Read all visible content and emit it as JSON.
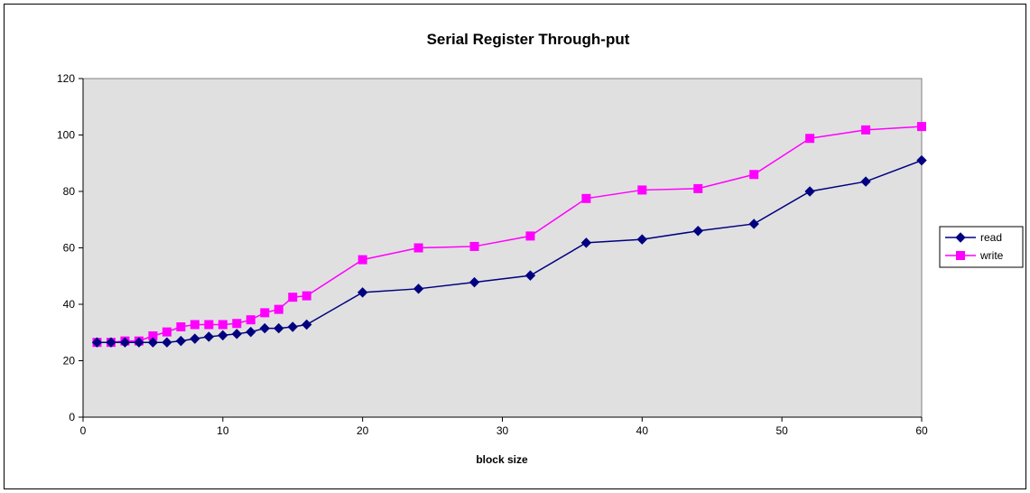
{
  "chart_data": {
    "type": "line",
    "title": "Serial Register Through-put",
    "xlabel": "block size",
    "ylabel": "",
    "xlim": [
      0,
      60
    ],
    "ylim": [
      0,
      120
    ],
    "xticks": [
      0,
      10,
      20,
      30,
      40,
      50,
      60
    ],
    "yticks": [
      0,
      20,
      40,
      60,
      80,
      100,
      120
    ],
    "grid": false,
    "plot_background": "#e0e0e0",
    "legend_position": "right",
    "series": [
      {
        "name": "read",
        "color": "#000080",
        "marker": "diamond",
        "points": [
          [
            1,
            26.5
          ],
          [
            2,
            26.5
          ],
          [
            3,
            26.5
          ],
          [
            4,
            26.5
          ],
          [
            5,
            26.5
          ],
          [
            6,
            26.5
          ],
          [
            7,
            27
          ],
          [
            8,
            27.8
          ],
          [
            9,
            28.5
          ],
          [
            10,
            29
          ],
          [
            11,
            29.5
          ],
          [
            12,
            30.2
          ],
          [
            13,
            31.5
          ],
          [
            14,
            31.5
          ],
          [
            15,
            32
          ],
          [
            16,
            32.8
          ],
          [
            20,
            44.2
          ],
          [
            24,
            45.5
          ],
          [
            28,
            47.8
          ],
          [
            32,
            50.2
          ],
          [
            36,
            61.8
          ],
          [
            40,
            63
          ],
          [
            44,
            66
          ],
          [
            48,
            68.5
          ],
          [
            52,
            80
          ],
          [
            56,
            83.5
          ],
          [
            60,
            91
          ]
        ]
      },
      {
        "name": "write",
        "color": "#ff00ff",
        "marker": "square",
        "points": [
          [
            1,
            26.5
          ],
          [
            2,
            26.5
          ],
          [
            3,
            27
          ],
          [
            4,
            27
          ],
          [
            5,
            28.8
          ],
          [
            6,
            30.2
          ],
          [
            7,
            32
          ],
          [
            8,
            32.8
          ],
          [
            9,
            32.8
          ],
          [
            10,
            32.8
          ],
          [
            11,
            33.2
          ],
          [
            12,
            34.5
          ],
          [
            13,
            37
          ],
          [
            14,
            38.2
          ],
          [
            15,
            42.5
          ],
          [
            16,
            43
          ],
          [
            20,
            55.8
          ],
          [
            24,
            60
          ],
          [
            28,
            60.5
          ],
          [
            32,
            64.2
          ],
          [
            36,
            77.5
          ],
          [
            40,
            80.5
          ],
          [
            44,
            81
          ],
          [
            48,
            86
          ],
          [
            52,
            98.8
          ],
          [
            56,
            101.8
          ],
          [
            60,
            103
          ]
        ]
      }
    ]
  }
}
